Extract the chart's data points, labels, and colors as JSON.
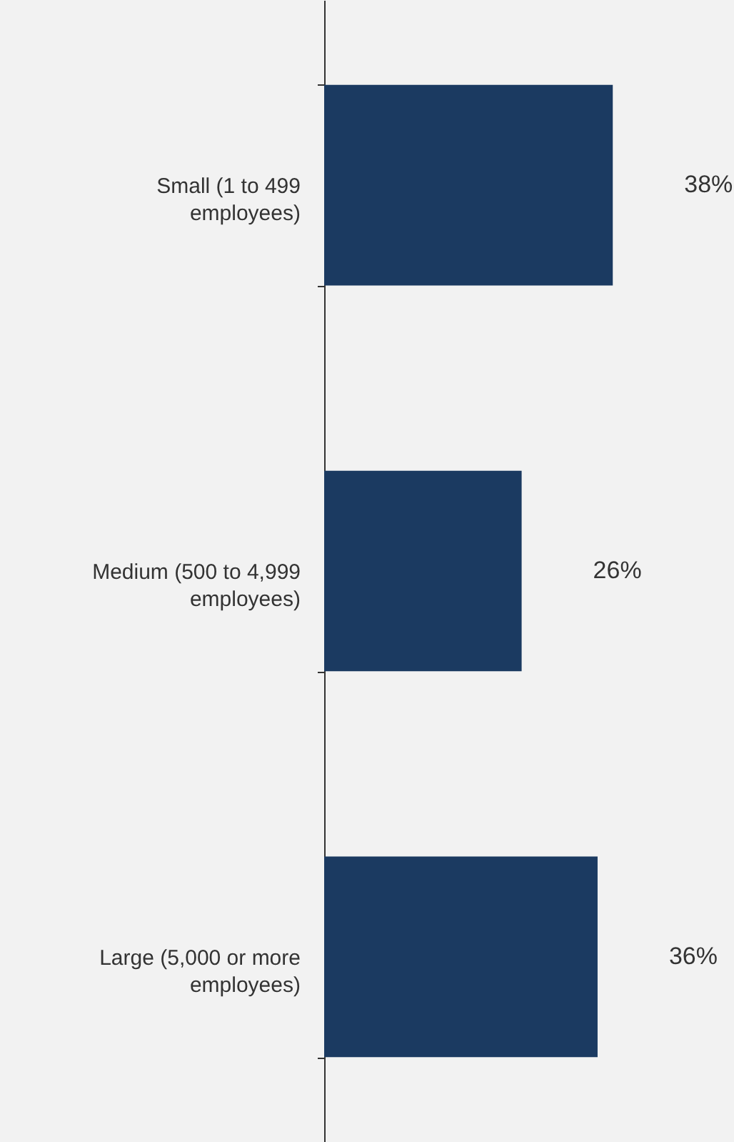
{
  "chart_data": {
    "type": "bar",
    "orientation": "horizontal",
    "categories": [
      "Small (1 to 499 employees)",
      "Medium (500 to 4,999 employees)",
      "Large (5,000 or more employees)"
    ],
    "values": [
      38,
      26,
      36
    ],
    "color": "#1b3a61",
    "value_labels": [
      "38%",
      "26%",
      "36%"
    ]
  }
}
